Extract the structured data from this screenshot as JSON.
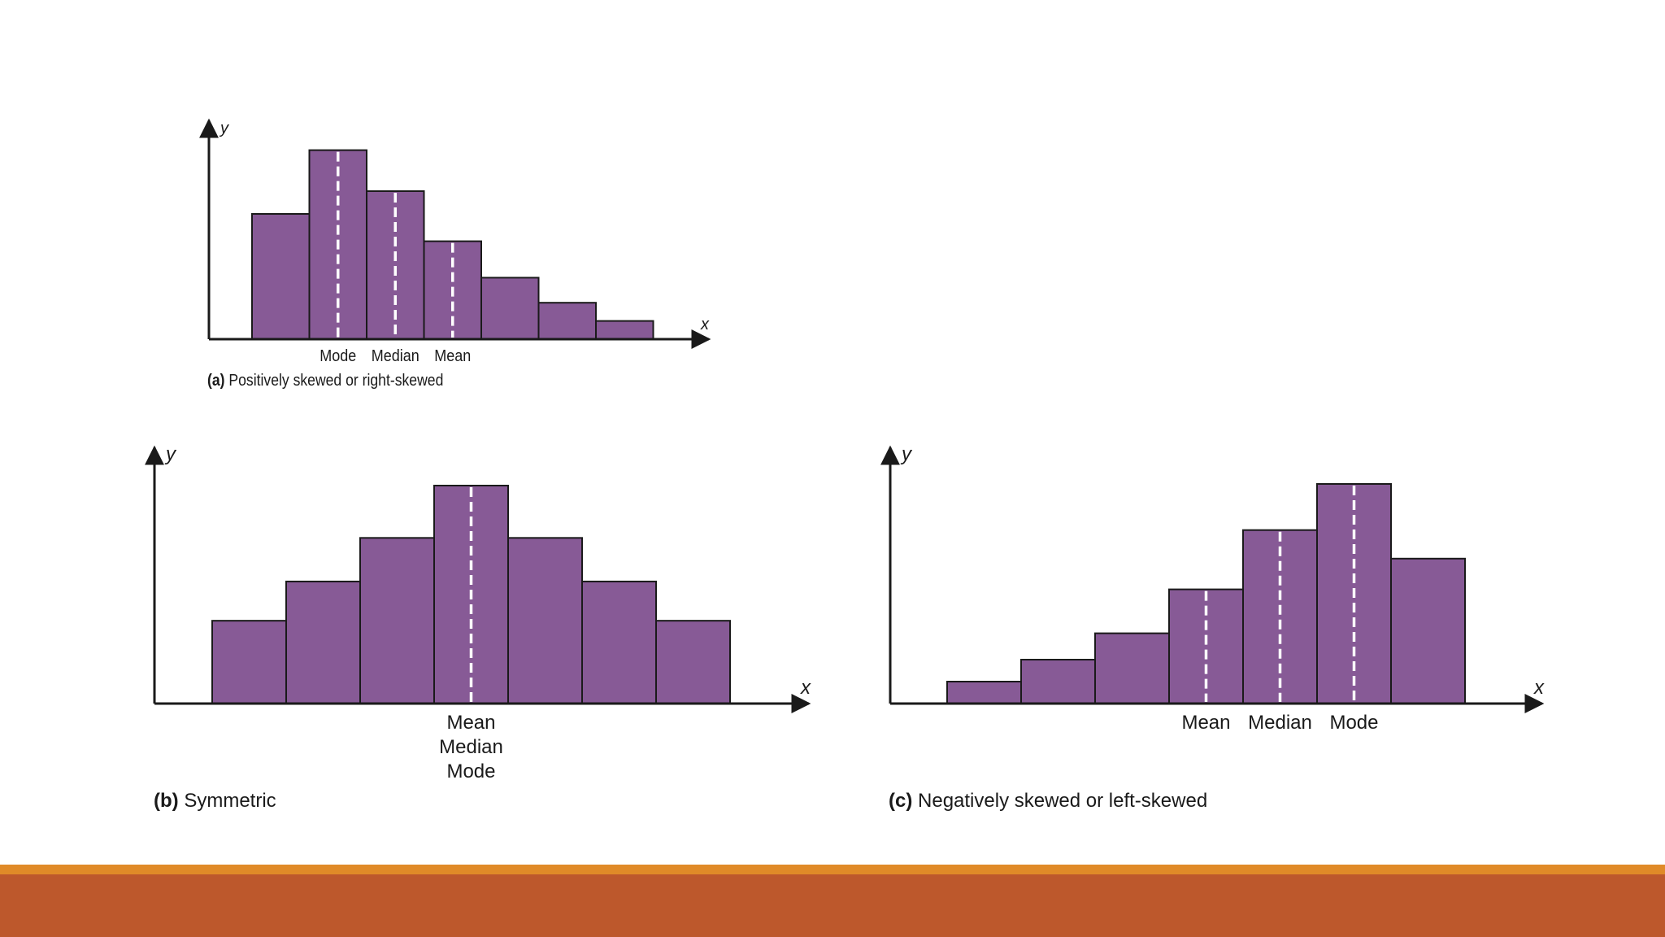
{
  "colors": {
    "bar_fill": "#875a96",
    "bar_stroke": "#1a1a1a",
    "mean_line": "#ffffff",
    "axis": "#1a1a1a",
    "footer_stripe": "#e08a28",
    "footer_band": "#bd582c",
    "background": "#ffffff"
  },
  "chart_data": [
    {
      "type": "bar",
      "id": "a",
      "caption_letter": "(a)",
      "caption_text": " Positively skewed or right-skewed",
      "xlabel": "x",
      "ylabel": "y",
      "values": [
        0.55,
        0.83,
        0.65,
        0.43,
        0.27,
        0.16,
        0.08
      ],
      "ylim": [
        0,
        1
      ],
      "markers": [
        {
          "label": "Mode",
          "bin": 1.5
        },
        {
          "label": "Median",
          "bin": 2.5
        },
        {
          "label": "Mean",
          "bin": 3.5
        }
      ],
      "marker_label_layout": "row"
    },
    {
      "type": "bar",
      "id": "b",
      "caption_letter": "(b)",
      "caption_text": " Symmetric",
      "xlabel": "x",
      "ylabel": "y",
      "values": [
        0.38,
        0.56,
        0.76,
        1.0,
        0.76,
        0.56,
        0.38
      ],
      "ylim": [
        0,
        1
      ],
      "markers": [
        {
          "label": "Mean",
          "bin": 3.5
        },
        {
          "label": "Median",
          "bin": 3.5
        },
        {
          "label": "Mode",
          "bin": 3.5
        }
      ],
      "marker_label_layout": "stack"
    },
    {
      "type": "bar",
      "id": "c",
      "caption_letter": "(c)",
      "caption_text": " Negatively skewed or left-skewed",
      "xlabel": "x",
      "ylabel": "y",
      "values": [
        0.1,
        0.2,
        0.32,
        0.52,
        0.79,
        1.0,
        0.66
      ],
      "ylim": [
        0,
        1
      ],
      "markers": [
        {
          "label": "Mean",
          "bin": 3.5
        },
        {
          "label": "Median",
          "bin": 4.5
        },
        {
          "label": "Mode",
          "bin": 5.5
        }
      ],
      "marker_label_layout": "row"
    }
  ]
}
